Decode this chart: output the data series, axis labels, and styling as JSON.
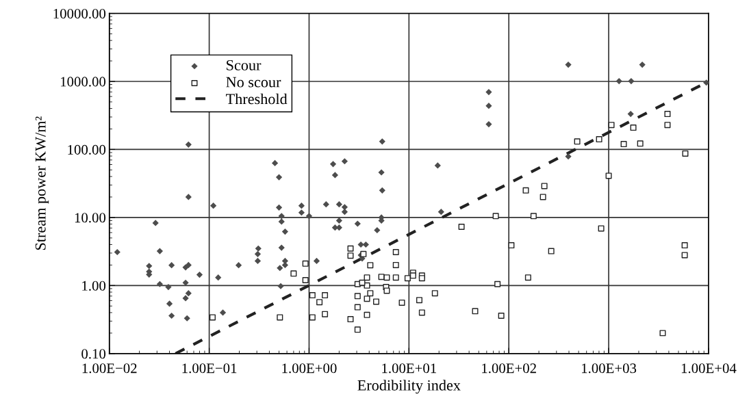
{
  "chart_data": {
    "type": "scatter",
    "xlabel": "Erodibility index",
    "ylabel": "Stream power KW/m²",
    "log": "xy",
    "grid": true,
    "legend": "top left",
    "xlim": [
      0.01,
      10000
    ],
    "ylim": [
      0.1,
      10000
    ],
    "xticks": [
      {
        "value": 0.01,
        "label": "1.00E−02"
      },
      {
        "value": 0.1,
        "label": "1.00E−01"
      },
      {
        "value": 1,
        "label": "1.00E+00"
      },
      {
        "value": 10,
        "label": "1.00E+01"
      },
      {
        "value": 100,
        "label": "1.00E+02"
      },
      {
        "value": 1000,
        "label": "1.00E+03"
      },
      {
        "value": 10000,
        "label": "1.00E+04"
      }
    ],
    "yticks": [
      {
        "value": 0.1,
        "label": "0.10"
      },
      {
        "value": 1,
        "label": "1.00"
      },
      {
        "value": 10,
        "label": "10.00"
      },
      {
        "value": 100,
        "label": "100.00"
      },
      {
        "value": 1000,
        "label": "1000.00"
      },
      {
        "value": 10000,
        "label": "10000.00"
      }
    ],
    "series": [
      {
        "name": "Scour",
        "marker": "diamond",
        "color": "#4d4d4d",
        "x": [
          0.012,
          0.025,
          0.025,
          0.025,
          0.029,
          0.032,
          0.032,
          0.039,
          0.042,
          0.04,
          0.042,
          0.058,
          0.062,
          0.058,
          0.062,
          0.058,
          0.06,
          0.062,
          0.062,
          0.08,
          0.11,
          0.123,
          0.137,
          0.197,
          0.306,
          0.306,
          0.31,
          0.455,
          0.5,
          0.5,
          0.53,
          0.53,
          0.575,
          0.53,
          0.575,
          0.575,
          0.51,
          0.52,
          0.84,
          0.84,
          1.0,
          1.19,
          1.74,
          2.27,
          1.82,
          1.48,
          2.0,
          2.27,
          2.27,
          2.0,
          1.82,
          2.0,
          3.06,
          4.8,
          3.3,
          3.7,
          3.3,
          3.4,
          5.4,
          5.3,
          5.4,
          5.3,
          5.3,
          19.4,
          21,
          63,
          63,
          63,
          394,
          1270,
          1680,
          2170,
          1660,
          394,
          9500
        ],
        "values": [
          3.1,
          1.94,
          1.6,
          1.45,
          8.3,
          3.2,
          1.05,
          0.95,
          1.99,
          0.54,
          0.36,
          1.85,
          2.0,
          1.1,
          0.77,
          0.65,
          0.33,
          118,
          20,
          1.44,
          14.9,
          1.31,
          0.4,
          1.99,
          2.3,
          2.9,
          3.5,
          63,
          39,
          14,
          10.5,
          8.7,
          6.2,
          3.6,
          2.3,
          2.0,
          1.81,
          0.98,
          14.9,
          11.8,
          10.5,
          2.3,
          61,
          67,
          42,
          15.6,
          15.6,
          14.2,
          12.1,
          9,
          7.1,
          7.1,
          8.1,
          6.5,
          4.0,
          4.0,
          2.8,
          2.5,
          131,
          46,
          25,
          10,
          9.0,
          58,
          12.1,
          697,
          438,
          235,
          1760,
          1010,
          1010,
          1760,
          332,
          79,
          960
        ]
      },
      {
        "name": "No scour",
        "marker": "square",
        "color": "#222222",
        "x": [
          0.108,
          0.51,
          0.92,
          0.7,
          0.92,
          1.08,
          1.08,
          1.27,
          1.44,
          1.44,
          2.6,
          2.6,
          2.6,
          3.06,
          3.06,
          3.06,
          3.06,
          3.5,
          3.8,
          3.8,
          3.4,
          4.1,
          4.1,
          3.8,
          3.8,
          4.7,
          5.3,
          6.0,
          5.9,
          6.0,
          7.4,
          7.4,
          7.4,
          8.5,
          9.7,
          11,
          11,
          13.5,
          13.5,
          12.7,
          13.5,
          18.2,
          33.6,
          46,
          74,
          77,
          84,
          106,
          148,
          227,
          220,
          177,
          156,
          266,
          484,
          802,
          841,
          1000,
          1065,
          1415,
          1765,
          2070,
          3880,
          3880,
          5850,
          5770,
          5770,
          3475
        ],
        "values": [
          0.34,
          0.34,
          2.1,
          1.5,
          1.2,
          0.72,
          0.34,
          0.57,
          0.72,
          0.38,
          3.5,
          2.75,
          0.32,
          1.05,
          0.7,
          0.48,
          0.225,
          2.9,
          1.31,
          1.0,
          1.1,
          1.99,
          0.77,
          0.64,
          0.37,
          0.58,
          1.34,
          1.31,
          0.95,
          0.84,
          3.1,
          2.0,
          1.31,
          0.56,
          1.28,
          1.54,
          1.4,
          1.4,
          1.28,
          0.61,
          0.4,
          0.77,
          7.3,
          0.42,
          10.5,
          1.05,
          0.36,
          3.9,
          25,
          29,
          20,
          10.5,
          1.31,
          3.2,
          131,
          141,
          6.9,
          41,
          229,
          120,
          209,
          122,
          332,
          229,
          87,
          3.9,
          2.8,
          0.2
        ]
      },
      {
        "name": "Threshold",
        "type": "line",
        "line_style": "dashed",
        "marker": "none",
        "color": "#222222",
        "x": [
          0.046,
          10000
        ],
        "values": [
          0.1,
          1000
        ]
      }
    ]
  }
}
